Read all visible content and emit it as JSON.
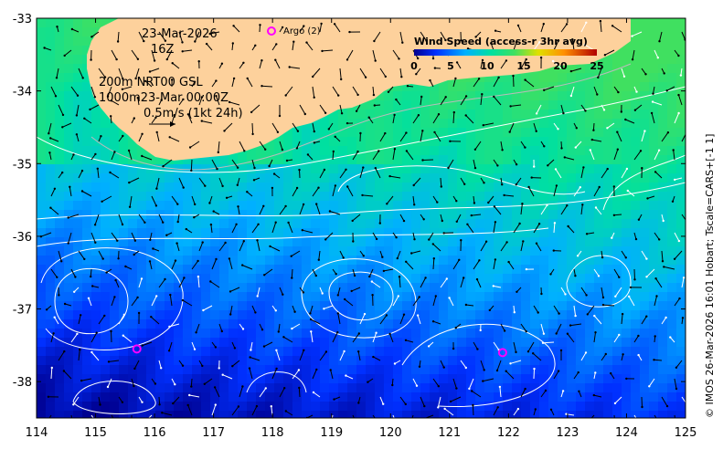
{
  "date_line": "23-Mar-2026",
  "hour_line": "16Z",
  "legend_line1": "200m  NRT00 GSL",
  "legend_line2": "1000m23-Mar 00:00Z",
  "legend_line3": "0.5m/s (1kt 24h)",
  "argo_label": "Argo (2)",
  "colorbar": {
    "title": "Wind Speed (access-r 3hr avg)",
    "ticks": [
      "0",
      "5",
      "10",
      "15",
      "20",
      "25"
    ],
    "range": [
      0,
      25
    ]
  },
  "side_caption": "© IMOS 26-Mar-2026 16:01 Hobart; Tscale=CARS+[-1 1]",
  "axes": {
    "x_ticks": [
      "114",
      "115",
      "116",
      "117",
      "118",
      "119",
      "120",
      "121",
      "122",
      "123",
      "124",
      "125"
    ],
    "y_ticks": [
      "-33",
      "-34",
      "-35",
      "-36",
      "-37",
      "-38"
    ],
    "lon_range": [
      114,
      125
    ],
    "lat_range": [
      -38.5,
      -33
    ]
  },
  "argo_floats": [
    {
      "lon": 115.7,
      "lat": -37.55
    },
    {
      "lon": 121.9,
      "lat": -37.6
    }
  ],
  "colors": {
    "land": "#fdd19c",
    "contour": "#ffffff",
    "argo": "#ff00ff",
    "isobath": "#bbbbbb"
  }
}
